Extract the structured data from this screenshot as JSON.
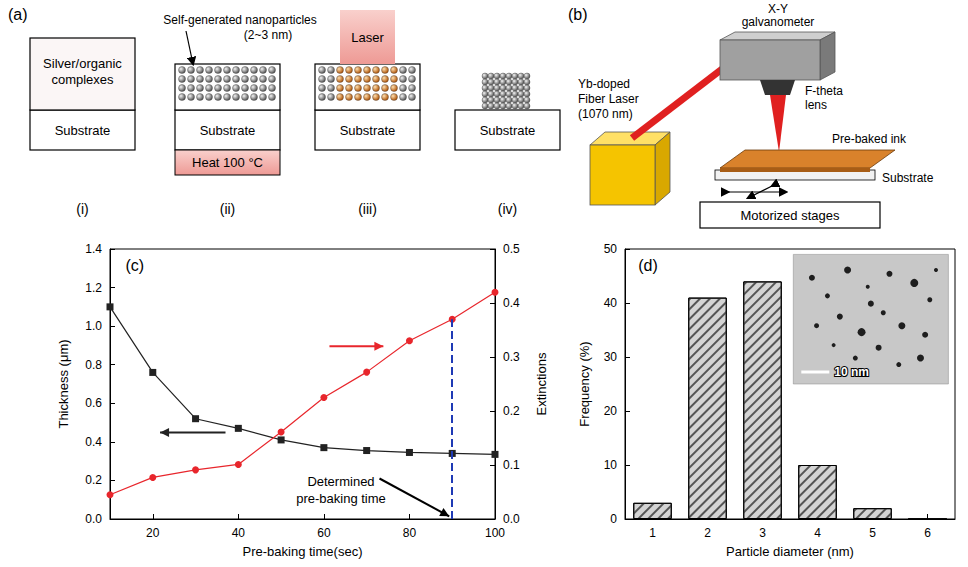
{
  "diagram_a": {
    "panel": "(a)",
    "substrate": "Substrate",
    "precursor": [
      "Silver/organic",
      "complexes"
    ],
    "nanoparticles": [
      "Self-generated nanoparticles",
      "(2~3 nm)"
    ],
    "heat": "Heat 100 °C",
    "laser": "Laser",
    "steps": [
      "(i)",
      "(ii)",
      "(iii)",
      "(iv)"
    ]
  },
  "diagram_b": {
    "panel": "(b)",
    "laser_source": [
      "Yb-doped",
      "Fiber Laser",
      "(1070 nm)"
    ],
    "galvanometer": [
      "X-Y",
      "galvanometer"
    ],
    "lens": [
      "F-theta",
      "lens"
    ],
    "ink": "Pre-baked ink",
    "substrate": "Substrate",
    "stages": "Motorized stages"
  },
  "chart_data": [
    {
      "type": "line",
      "panel": "(c)",
      "x": [
        10,
        20,
        30,
        40,
        50,
        60,
        70,
        80,
        90,
        100
      ],
      "xlabel": "Pre-baking time(sec)",
      "ylabel": "Thickness (μm)",
      "y2label": "Extinctions",
      "xlim": [
        10,
        100
      ],
      "xticks": [
        20,
        40,
        60,
        80,
        100
      ],
      "ylim": [
        0,
        1.4
      ],
      "yticks": [
        {
          "value": 0,
          "label": "0.0"
        },
        0.2,
        0.4,
        0.6,
        0.8,
        {
          "value": 1,
          "label": "1.0"
        },
        1.2,
        1.4
      ],
      "y2lim": [
        0,
        0.5
      ],
      "y2ticks": [
        {
          "value": 0,
          "label": "0.0"
        },
        0.1,
        0.2,
        0.3,
        0.4,
        0.5
      ],
      "series": [
        {
          "color": "#222222",
          "marker": "square",
          "values": [
            1.1,
            0.76,
            0.52,
            0.47,
            0.41,
            0.37,
            0.355,
            0.345,
            0.34,
            0.335
          ]
        },
        {
          "color": "#e8262c",
          "marker": "circle",
          "axis": "y2",
          "values": [
            0.045,
            0.077,
            0.091,
            0.101,
            0.161,
            0.225,
            0.272,
            0.33,
            0.37,
            0.42
          ]
        }
      ],
      "annotations": [
        {
          "text": "Determined pre-baking time",
          "x": 90,
          "color": "#1f3ab5",
          "line_style": "dashed"
        }
      ],
      "grid": false
    },
    {
      "type": "bar",
      "panel": "(d)",
      "categories": [
        1,
        2,
        3,
        4,
        5,
        6
      ],
      "values": [
        3,
        41,
        44,
        10,
        2,
        0
      ],
      "xlabel": "Particle diameter (nm)",
      "ylabel": "Frequency (%)",
      "ylim": [
        0,
        50
      ],
      "yticks": [
        0,
        10,
        20,
        30,
        40,
        50
      ],
      "color": "#d4d4d4",
      "inset": {
        "scale_bar": "10 nm"
      },
      "grid": false
    }
  ]
}
